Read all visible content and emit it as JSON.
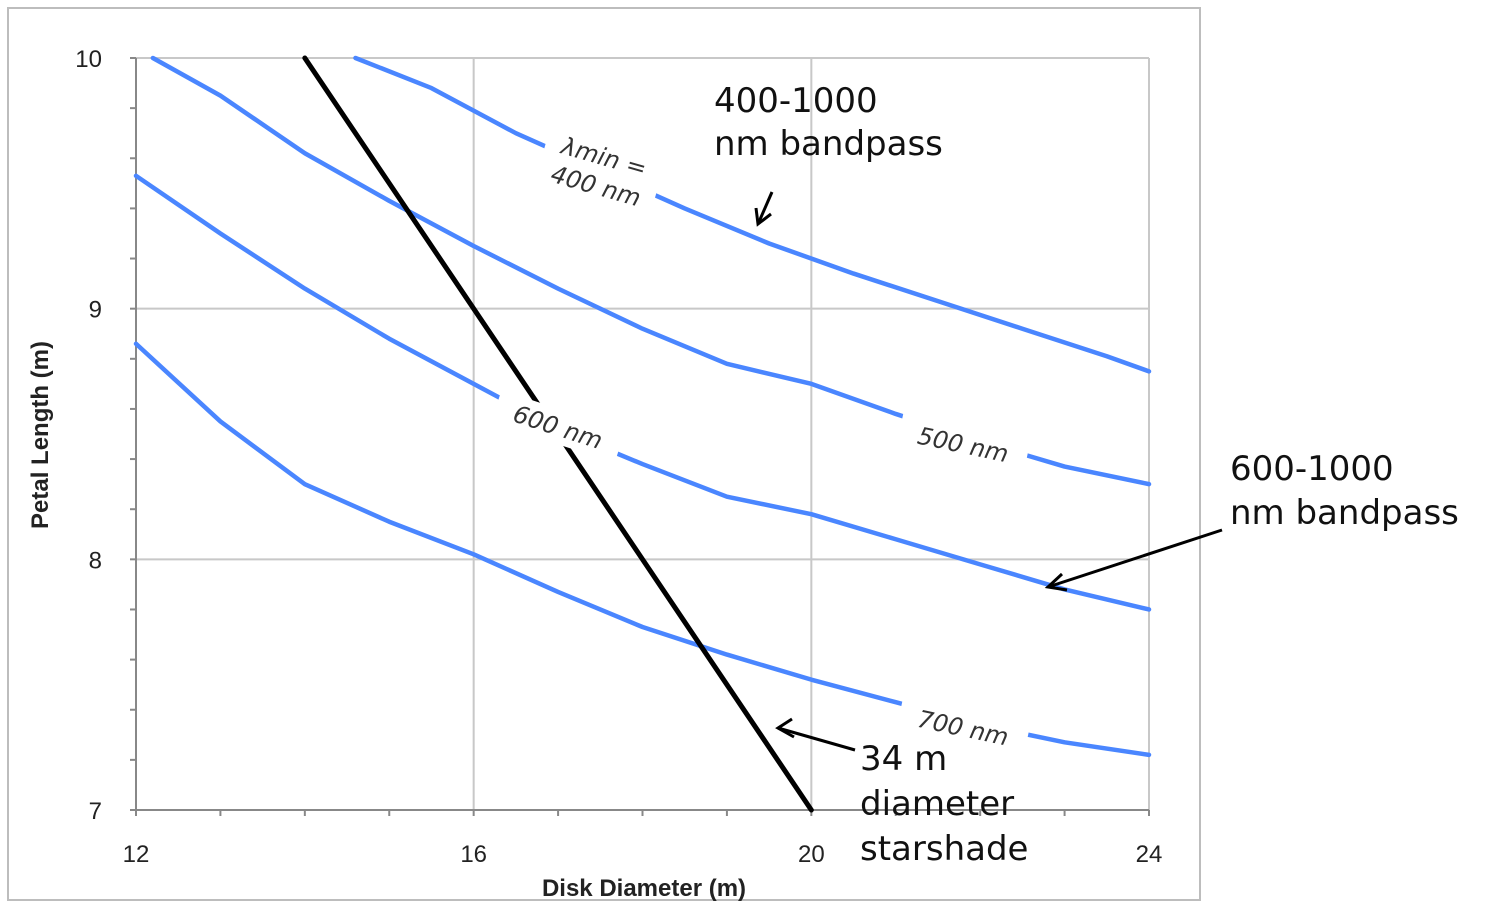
{
  "chart_data": {
    "type": "line",
    "title": "",
    "xlabel": "Disk Diameter (m)",
    "ylabel": "Petal Length (m)",
    "xlim": [
      12,
      24
    ],
    "ylim": [
      7,
      10
    ],
    "xticks": [
      "12",
      "16",
      "20",
      "24"
    ],
    "yticks": [
      "7",
      "8",
      "9",
      "10"
    ],
    "grid": true,
    "series": [
      {
        "name": "λmin = 400 nm",
        "color": "#4a86ff",
        "x": [
          14.6,
          15.5,
          16.5,
          17.5,
          18.5,
          19.5,
          20.5,
          21.5,
          22.5,
          23.5,
          24.0
        ],
        "y": [
          10.0,
          9.88,
          9.7,
          9.55,
          9.4,
          9.26,
          9.14,
          9.03,
          8.92,
          8.81,
          8.75
        ]
      },
      {
        "name": "500 nm",
        "color": "#4a86ff",
        "x": [
          12.2,
          13,
          14,
          15,
          16,
          17,
          18,
          19,
          20,
          21,
          22,
          23,
          24
        ],
        "y": [
          10.0,
          9.85,
          9.62,
          9.43,
          9.25,
          9.08,
          8.92,
          8.78,
          8.7,
          8.58,
          8.47,
          8.37,
          8.3
        ]
      },
      {
        "name": "600 nm",
        "color": "#4a86ff",
        "x": [
          12,
          13,
          14,
          15,
          16,
          17,
          18,
          19,
          20,
          21,
          22,
          23,
          24
        ],
        "y": [
          9.53,
          9.3,
          9.08,
          8.88,
          8.7,
          8.52,
          8.38,
          8.25,
          8.18,
          8.08,
          7.98,
          7.88,
          7.8
        ]
      },
      {
        "name": "700 nm",
        "color": "#4a86ff",
        "x": [
          12,
          13,
          14,
          15,
          16,
          17,
          18,
          19,
          20,
          21,
          22,
          23,
          24
        ],
        "y": [
          8.86,
          8.55,
          8.3,
          8.15,
          8.02,
          7.87,
          7.73,
          7.62,
          7.52,
          7.43,
          7.34,
          7.27,
          7.22
        ]
      },
      {
        "name": "34 m diameter starshade",
        "color": "#000000",
        "x": [
          14.0,
          20.0
        ],
        "y": [
          10.0,
          7.0
        ]
      }
    ],
    "curve_labels": [
      {
        "id": "label-400",
        "line1": "λmin =",
        "line2": "400 nm",
        "x": 17.5,
        "y": 9.55,
        "angle": 16
      },
      {
        "id": "label-500",
        "line1": "500 nm",
        "x": 21.8,
        "y": 8.46,
        "angle": 12
      },
      {
        "id": "label-600",
        "line1": "600 nm",
        "x": 17.0,
        "y": 8.53,
        "angle": 18
      },
      {
        "id": "label-700",
        "line1": "700 nm",
        "x": 21.8,
        "y": 7.33,
        "angle": 12
      }
    ],
    "annotations": [
      {
        "id": "note-400",
        "lines": [
          "400-1000",
          "nm bandpass"
        ]
      },
      {
        "id": "note-600",
        "lines": [
          "600-1000",
          "nm bandpass"
        ]
      },
      {
        "id": "note-starshade",
        "lines": [
          "34 m",
          "diameter",
          "starshade"
        ]
      }
    ]
  }
}
